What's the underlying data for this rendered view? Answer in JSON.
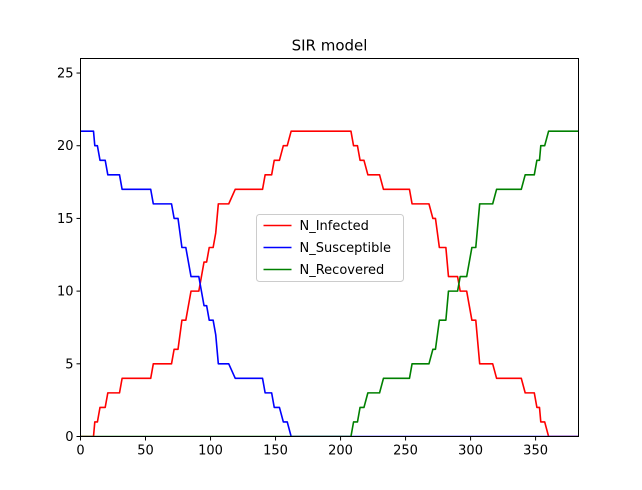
{
  "chart_data": {
    "type": "line",
    "title": "SIR model",
    "xlabel": "",
    "ylabel": "",
    "xlim": [
      0,
      383
    ],
    "ylim": [
      0,
      26
    ],
    "xticks": [
      0,
      50,
      100,
      150,
      200,
      250,
      300,
      350
    ],
    "yticks": [
      0,
      5,
      10,
      15,
      20,
      25
    ],
    "grid": false,
    "legend_position": "center",
    "series": [
      {
        "name": "N_Infected",
        "color": "#ff0000",
        "points": [
          [
            0,
            0
          ],
          [
            10,
            0
          ],
          [
            11,
            1
          ],
          [
            13,
            1
          ],
          [
            15,
            2
          ],
          [
            19,
            2
          ],
          [
            21,
            3
          ],
          [
            30,
            3
          ],
          [
            32,
            4
          ],
          [
            54,
            4
          ],
          [
            56,
            5
          ],
          [
            70,
            5
          ],
          [
            72,
            6
          ],
          [
            75,
            6
          ],
          [
            78,
            8
          ],
          [
            81,
            8
          ],
          [
            85,
            10
          ],
          [
            91,
            10
          ],
          [
            93,
            11
          ],
          [
            95,
            12
          ],
          [
            97,
            12
          ],
          [
            99,
            13
          ],
          [
            102,
            13
          ],
          [
            104,
            14
          ],
          [
            106,
            16
          ],
          [
            114,
            16
          ],
          [
            119,
            17
          ],
          [
            140,
            17
          ],
          [
            142,
            18
          ],
          [
            147,
            18
          ],
          [
            149,
            19
          ],
          [
            153,
            19
          ],
          [
            156,
            20
          ],
          [
            159,
            20
          ],
          [
            162,
            21
          ],
          [
            208,
            21
          ],
          [
            210,
            20
          ],
          [
            213,
            20
          ],
          [
            215,
            19
          ],
          [
            218,
            19
          ],
          [
            221,
            18
          ],
          [
            230,
            18
          ],
          [
            233,
            17
          ],
          [
            253,
            17
          ],
          [
            255,
            16
          ],
          [
            268,
            16
          ],
          [
            271,
            15
          ],
          [
            273,
            15
          ],
          [
            276,
            13
          ],
          [
            281,
            13
          ],
          [
            283,
            11
          ],
          [
            290,
            11
          ],
          [
            292,
            10
          ],
          [
            297,
            10
          ],
          [
            301,
            8
          ],
          [
            304,
            8
          ],
          [
            307,
            5
          ],
          [
            317,
            5
          ],
          [
            320,
            4
          ],
          [
            339,
            4
          ],
          [
            342,
            3
          ],
          [
            349,
            3
          ],
          [
            351,
            2
          ],
          [
            353,
            2
          ],
          [
            354,
            1
          ],
          [
            357,
            1
          ],
          [
            360,
            0
          ],
          [
            383,
            0
          ]
        ]
      },
      {
        "name": "N_Susceptible",
        "color": "#0000ff",
        "points": [
          [
            0,
            21
          ],
          [
            10,
            21
          ],
          [
            11,
            20
          ],
          [
            13,
            20
          ],
          [
            15,
            19
          ],
          [
            19,
            19
          ],
          [
            21,
            18
          ],
          [
            30,
            18
          ],
          [
            32,
            17
          ],
          [
            54,
            17
          ],
          [
            56,
            16
          ],
          [
            70,
            16
          ],
          [
            72,
            15
          ],
          [
            75,
            15
          ],
          [
            78,
            13
          ],
          [
            81,
            13
          ],
          [
            85,
            11
          ],
          [
            91,
            11
          ],
          [
            93,
            10
          ],
          [
            95,
            9
          ],
          [
            97,
            9
          ],
          [
            99,
            8
          ],
          [
            102,
            8
          ],
          [
            104,
            7
          ],
          [
            106,
            5
          ],
          [
            114,
            5
          ],
          [
            119,
            4
          ],
          [
            140,
            4
          ],
          [
            142,
            3
          ],
          [
            147,
            3
          ],
          [
            149,
            2
          ],
          [
            153,
            2
          ],
          [
            156,
            1
          ],
          [
            159,
            1
          ],
          [
            162,
            0
          ],
          [
            383,
            0
          ]
        ]
      },
      {
        "name": "N_Recovered",
        "color": "#008000",
        "points": [
          [
            0,
            0
          ],
          [
            208,
            0
          ],
          [
            210,
            1
          ],
          [
            213,
            1
          ],
          [
            215,
            2
          ],
          [
            218,
            2
          ],
          [
            221,
            3
          ],
          [
            230,
            3
          ],
          [
            233,
            4
          ],
          [
            253,
            4
          ],
          [
            255,
            5
          ],
          [
            268,
            5
          ],
          [
            271,
            6
          ],
          [
            273,
            6
          ],
          [
            276,
            8
          ],
          [
            281,
            8
          ],
          [
            283,
            10
          ],
          [
            290,
            10
          ],
          [
            292,
            11
          ],
          [
            297,
            11
          ],
          [
            301,
            13
          ],
          [
            304,
            13
          ],
          [
            307,
            16
          ],
          [
            317,
            16
          ],
          [
            320,
            17
          ],
          [
            339,
            17
          ],
          [
            342,
            18
          ],
          [
            349,
            18
          ],
          [
            351,
            19
          ],
          [
            353,
            19
          ],
          [
            354,
            20
          ],
          [
            357,
            20
          ],
          [
            360,
            21
          ],
          [
            383,
            21
          ]
        ]
      }
    ]
  }
}
